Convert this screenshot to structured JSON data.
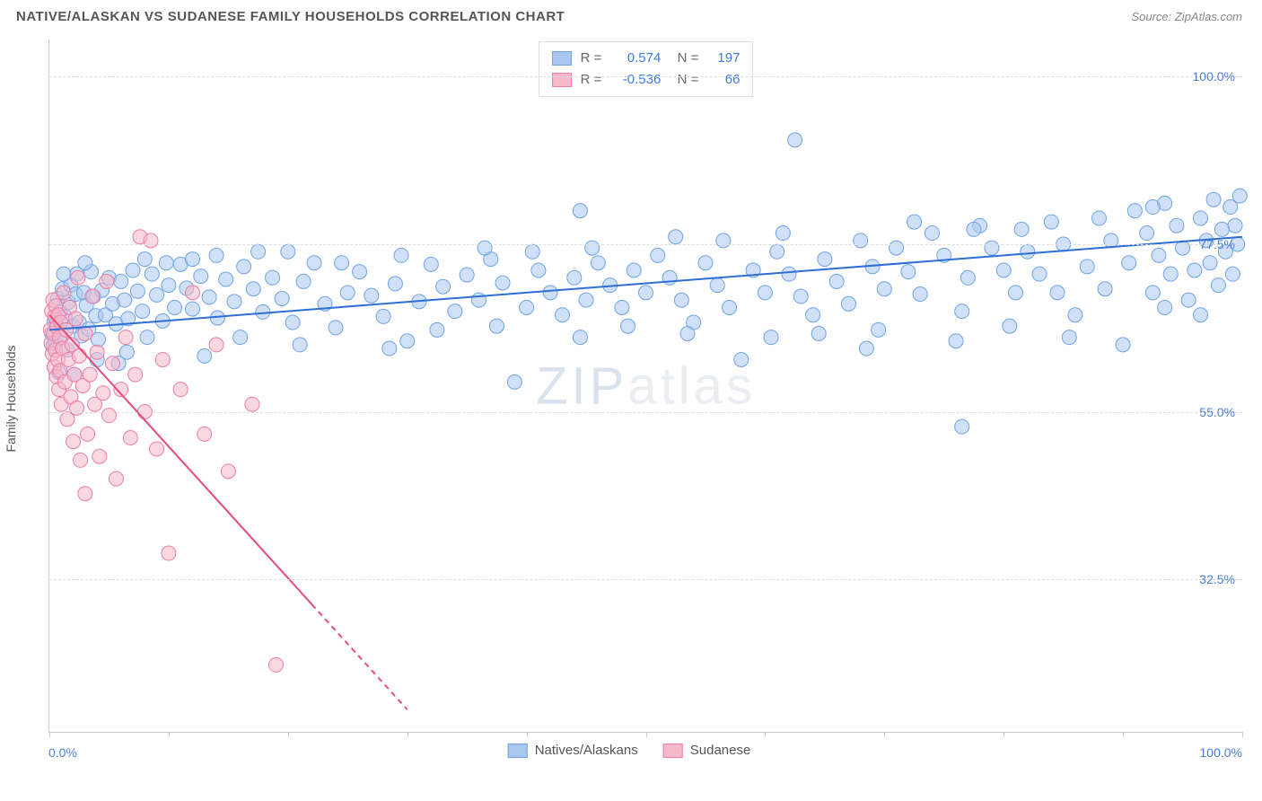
{
  "title": "NATIVE/ALASKAN VS SUDANESE FAMILY HOUSEHOLDS CORRELATION CHART",
  "source": "Source: ZipAtlas.com",
  "chart": {
    "type": "scatter",
    "ylabel": "Family Households",
    "watermark": {
      "bold": "ZIP",
      "light": "atlas"
    },
    "background_color": "#ffffff",
    "grid_color": "#dddddd",
    "axis_color": "#cccccc",
    "tick_label_color": "#4a7fd8",
    "xlim": [
      0,
      100
    ],
    "ylim": [
      12,
      105
    ],
    "xticks": [
      0,
      10,
      20,
      30,
      40,
      50,
      60,
      70,
      80,
      90,
      100
    ],
    "yticks": [
      {
        "v": 32.5,
        "label": "32.5%"
      },
      {
        "v": 55.0,
        "label": "55.0%"
      },
      {
        "v": 77.5,
        "label": "77.5%"
      },
      {
        "v": 100.0,
        "label": "100.0%"
      }
    ],
    "xaxis_labels": {
      "left": "0.0%",
      "right": "100.0%"
    },
    "marker_radius": 8,
    "marker_opacity": 0.55,
    "series": [
      {
        "name": "Natives/Alaskans",
        "color_fill": "#a9c8f0",
        "color_stroke": "#6fa3e6",
        "trend": {
          "x1": 0,
          "y1": 66.0,
          "x2": 100,
          "y2": 78.5,
          "color": "#2d6fd6",
          "width": 2,
          "dash_from_x": null
        },
        "stats": {
          "R": "0.574",
          "N": "197"
        },
        "points": [
          [
            0.2,
            65.5
          ],
          [
            0.3,
            63.8
          ],
          [
            0.4,
            67.1
          ],
          [
            0.5,
            64.2
          ],
          [
            0.6,
            66.9
          ],
          [
            0.7,
            70.2
          ],
          [
            0.8,
            60.3
          ],
          [
            0.9,
            68.4
          ],
          [
            1.0,
            65.0
          ],
          [
            1.1,
            71.5
          ],
          [
            1.3,
            67.8
          ],
          [
            1.5,
            63.3
          ],
          [
            1.6,
            69.7
          ],
          [
            1.8,
            72.0
          ],
          [
            2.0,
            66.5
          ],
          [
            2.2,
            70.8
          ],
          [
            2.3,
            73.5
          ],
          [
            2.5,
            67.0
          ],
          [
            2.7,
            65.2
          ],
          [
            2.9,
            71.0
          ],
          [
            3.1,
            69.3
          ],
          [
            3.3,
            66.1
          ],
          [
            3.5,
            73.8
          ],
          [
            3.7,
            70.5
          ],
          [
            3.9,
            67.9
          ],
          [
            4.1,
            64.7
          ],
          [
            4.4,
            71.3
          ],
          [
            4.7,
            68.0
          ],
          [
            5.0,
            73.0
          ],
          [
            5.3,
            69.5
          ],
          [
            5.6,
            66.8
          ],
          [
            6.0,
            72.5
          ],
          [
            6.3,
            70.0
          ],
          [
            6.6,
            67.5
          ],
          [
            7.0,
            74.0
          ],
          [
            7.4,
            71.2
          ],
          [
            7.8,
            68.5
          ],
          [
            8.2,
            65.0
          ],
          [
            8.6,
            73.5
          ],
          [
            9.0,
            70.7
          ],
          [
            9.5,
            67.2
          ],
          [
            10.0,
            72.0
          ],
          [
            10.5,
            69.0
          ],
          [
            11.0,
            74.8
          ],
          [
            11.5,
            71.6
          ],
          [
            12.0,
            68.8
          ],
          [
            12.7,
            73.2
          ],
          [
            13.4,
            70.4
          ],
          [
            14.1,
            67.6
          ],
          [
            14.8,
            72.8
          ],
          [
            15.5,
            69.8
          ],
          [
            16.3,
            74.5
          ],
          [
            17.1,
            71.5
          ],
          [
            17.9,
            68.4
          ],
          [
            18.7,
            73.0
          ],
          [
            19.5,
            70.2
          ],
          [
            20.4,
            67.0
          ],
          [
            21.3,
            72.5
          ],
          [
            22.2,
            75.0
          ],
          [
            23.1,
            69.5
          ],
          [
            24.0,
            66.3
          ],
          [
            25.0,
            71.0
          ],
          [
            26.0,
            73.8
          ],
          [
            27.0,
            70.6
          ],
          [
            28.0,
            67.8
          ],
          [
            29.0,
            72.2
          ],
          [
            30.0,
            64.5
          ],
          [
            31.0,
            69.8
          ],
          [
            32.0,
            74.8
          ],
          [
            33.0,
            71.8
          ],
          [
            34.0,
            68.5
          ],
          [
            35.0,
            73.4
          ],
          [
            36.0,
            70.0
          ],
          [
            37.0,
            75.5
          ],
          [
            38.0,
            72.3
          ],
          [
            39.0,
            59.0
          ],
          [
            40.0,
            69.0
          ],
          [
            41.0,
            74.0
          ],
          [
            42.0,
            71.0
          ],
          [
            43.0,
            68.0
          ],
          [
            44.0,
            73.0
          ],
          [
            44.5,
            82.0
          ],
          [
            45.0,
            70.0
          ],
          [
            46.0,
            75.0
          ],
          [
            47.0,
            72.0
          ],
          [
            48.0,
            69.0
          ],
          [
            49.0,
            74.0
          ],
          [
            50.0,
            71.0
          ],
          [
            51.0,
            76.0
          ],
          [
            52.0,
            73.0
          ],
          [
            53.0,
            70.0
          ],
          [
            54.0,
            67.0
          ],
          [
            55.0,
            75.0
          ],
          [
            56.0,
            72.0
          ],
          [
            57.0,
            69.0
          ],
          [
            58.0,
            62.0
          ],
          [
            59.0,
            74.0
          ],
          [
            60.0,
            71.0
          ],
          [
            61.0,
            76.5
          ],
          [
            62.0,
            73.5
          ],
          [
            62.5,
            91.5
          ],
          [
            63.0,
            70.5
          ],
          [
            64.0,
            68.0
          ],
          [
            65.0,
            75.5
          ],
          [
            66.0,
            72.5
          ],
          [
            67.0,
            69.5
          ],
          [
            68.0,
            78.0
          ],
          [
            69.0,
            74.5
          ],
          [
            70.0,
            71.5
          ],
          [
            71.0,
            77.0
          ],
          [
            72.0,
            73.8
          ],
          [
            73.0,
            70.8
          ],
          [
            74.0,
            79.0
          ],
          [
            75.0,
            76.0
          ],
          [
            76.0,
            64.5
          ],
          [
            76.5,
            53.0
          ],
          [
            77.0,
            73.0
          ],
          [
            78.0,
            80.0
          ],
          [
            79.0,
            77.0
          ],
          [
            80.0,
            74.0
          ],
          [
            81.0,
            71.0
          ],
          [
            81.5,
            79.5
          ],
          [
            82.0,
            76.5
          ],
          [
            83.0,
            73.5
          ],
          [
            84.0,
            80.5
          ],
          [
            85.0,
            77.5
          ],
          [
            86.0,
            68.0
          ],
          [
            87.0,
            74.5
          ],
          [
            88.0,
            81.0
          ],
          [
            89.0,
            78.0
          ],
          [
            90.0,
            64.0
          ],
          [
            90.5,
            75.0
          ],
          [
            91.0,
            82.0
          ],
          [
            92.0,
            79.0
          ],
          [
            92.5,
            71.0
          ],
          [
            93.0,
            76.0
          ],
          [
            93.5,
            83.0
          ],
          [
            94.0,
            73.5
          ],
          [
            94.5,
            80.0
          ],
          [
            95.0,
            77.0
          ],
          [
            95.5,
            70.0
          ],
          [
            96.0,
            74.0
          ],
          [
            96.5,
            81.0
          ],
          [
            97.0,
            78.0
          ],
          [
            97.3,
            75.0
          ],
          [
            97.6,
            83.5
          ],
          [
            98.0,
            72.0
          ],
          [
            98.3,
            79.5
          ],
          [
            98.6,
            76.5
          ],
          [
            99.0,
            82.5
          ],
          [
            99.2,
            73.5
          ],
          [
            99.4,
            80.0
          ],
          [
            99.6,
            77.5
          ],
          [
            99.8,
            84.0
          ],
          [
            6.5,
            63.0
          ],
          [
            14.0,
            76.0
          ],
          [
            21.0,
            64.0
          ],
          [
            29.5,
            76.0
          ],
          [
            37.5,
            66.5
          ],
          [
            45.5,
            77.0
          ],
          [
            53.5,
            65.5
          ],
          [
            61.5,
            79.0
          ],
          [
            69.5,
            66.0
          ],
          [
            77.5,
            79.5
          ],
          [
            85.5,
            65.0
          ],
          [
            93.5,
            69.0
          ],
          [
            8.0,
            75.5
          ],
          [
            16.0,
            65.0
          ],
          [
            24.5,
            75.0
          ],
          [
            32.5,
            66.0
          ],
          [
            40.5,
            76.5
          ],
          [
            48.5,
            66.5
          ],
          [
            56.5,
            78.0
          ],
          [
            64.5,
            65.5
          ],
          [
            72.5,
            80.5
          ],
          [
            80.5,
            66.5
          ],
          [
            88.5,
            71.5
          ],
          [
            96.5,
            68.0
          ],
          [
            4.0,
            62.0
          ],
          [
            12.0,
            75.5
          ],
          [
            20.0,
            76.5
          ],
          [
            28.5,
            63.5
          ],
          [
            36.5,
            77.0
          ],
          [
            44.5,
            65.0
          ],
          [
            52.5,
            78.5
          ],
          [
            60.5,
            65.0
          ],
          [
            68.5,
            63.5
          ],
          [
            76.5,
            68.5
          ],
          [
            84.5,
            71.0
          ],
          [
            92.5,
            82.5
          ],
          [
            1.2,
            73.5
          ],
          [
            2.1,
            60.0
          ],
          [
            3.0,
            75.0
          ],
          [
            5.8,
            61.5
          ],
          [
            9.8,
            75.0
          ],
          [
            13.0,
            62.5
          ],
          [
            17.5,
            76.5
          ]
        ]
      },
      {
        "name": "Sudanese",
        "color_fill": "#f6b8cb",
        "color_stroke": "#ec7da3",
        "trend": {
          "x1": 0,
          "y1": 68.0,
          "x2": 30,
          "y2": 15.0,
          "color": "#e84a7a",
          "width": 2,
          "dash_from_x": 22
        },
        "stats": {
          "R": "-0.536",
          "N": "66"
        },
        "points": [
          [
            0.1,
            66.0
          ],
          [
            0.15,
            64.2
          ],
          [
            0.2,
            68.5
          ],
          [
            0.25,
            62.8
          ],
          [
            0.3,
            70.0
          ],
          [
            0.35,
            65.5
          ],
          [
            0.4,
            61.0
          ],
          [
            0.45,
            67.8
          ],
          [
            0.5,
            63.3
          ],
          [
            0.55,
            69.2
          ],
          [
            0.6,
            59.7
          ],
          [
            0.65,
            66.4
          ],
          [
            0.7,
            62.0
          ],
          [
            0.75,
            68.0
          ],
          [
            0.8,
            58.0
          ],
          [
            0.85,
            65.0
          ],
          [
            0.9,
            60.5
          ],
          [
            0.95,
            67.0
          ],
          [
            1.0,
            56.0
          ],
          [
            1.1,
            63.5
          ],
          [
            1.2,
            71.0
          ],
          [
            1.3,
            59.0
          ],
          [
            1.4,
            66.0
          ],
          [
            1.5,
            54.0
          ],
          [
            1.6,
            62.0
          ],
          [
            1.7,
            69.0
          ],
          [
            1.8,
            57.0
          ],
          [
            1.9,
            64.0
          ],
          [
            2.0,
            51.0
          ],
          [
            2.1,
            60.0
          ],
          [
            2.2,
            67.5
          ],
          [
            2.3,
            55.5
          ],
          [
            2.4,
            73.0
          ],
          [
            2.5,
            62.5
          ],
          [
            2.6,
            48.5
          ],
          [
            2.8,
            58.5
          ],
          [
            3.0,
            65.5
          ],
          [
            3.2,
            52.0
          ],
          [
            3.4,
            60.0
          ],
          [
            3.6,
            70.5
          ],
          [
            3.8,
            56.0
          ],
          [
            4.0,
            63.0
          ],
          [
            4.2,
            49.0
          ],
          [
            4.5,
            57.5
          ],
          [
            4.8,
            72.5
          ],
          [
            5.0,
            54.5
          ],
          [
            5.3,
            61.5
          ],
          [
            5.6,
            46.0
          ],
          [
            6.0,
            58.0
          ],
          [
            6.4,
            65.0
          ],
          [
            6.8,
            51.5
          ],
          [
            7.2,
            60.0
          ],
          [
            7.6,
            78.5
          ],
          [
            8.0,
            55.0
          ],
          [
            8.5,
            78.0
          ],
          [
            9.0,
            50.0
          ],
          [
            9.5,
            62.0
          ],
          [
            10.0,
            36.0
          ],
          [
            11.0,
            58.0
          ],
          [
            12.0,
            71.0
          ],
          [
            13.0,
            52.0
          ],
          [
            14.0,
            64.0
          ],
          [
            15.0,
            47.0
          ],
          [
            17.0,
            56.0
          ],
          [
            19.0,
            21.0
          ],
          [
            3.0,
            44.0
          ]
        ]
      }
    ],
    "bottom_legend": [
      {
        "label": "Natives/Alaskans",
        "fill": "#a9c8f0",
        "stroke": "#6fa3e6"
      },
      {
        "label": "Sudanese",
        "fill": "#f6b8cb",
        "stroke": "#ec7da3"
      }
    ]
  }
}
